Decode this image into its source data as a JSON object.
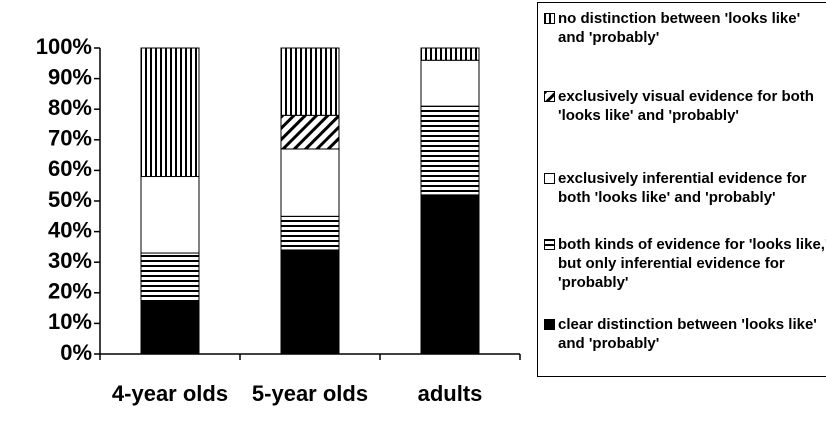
{
  "chart_data": {
    "type": "stacked_bar",
    "categories": [
      "4-year olds",
      "5-year olds",
      "adults"
    ],
    "series": [
      {
        "name": "clear distinction between 'looks like' and 'probably'",
        "color": "#000000",
        "pattern": "solid",
        "values": [
          17,
          34,
          52
        ]
      },
      {
        "name": "both kinds of evidence for 'looks like,' but only inferential evidence for 'probably'",
        "color": "#000000",
        "pattern": "horizontal",
        "values": [
          16,
          11,
          29
        ]
      },
      {
        "name": "exclusively inferential evidence for both 'looks like' and 'probably'",
        "color": "#000000",
        "pattern": "none",
        "values": [
          25,
          22,
          15
        ]
      },
      {
        "name": "exclusively visual evidence for both 'looks like' and 'probably'",
        "color": "#000000",
        "pattern": "diagonal",
        "values": [
          0,
          11,
          0
        ]
      },
      {
        "name": "no distinction between 'looks like' and 'probably'",
        "color": "#000000",
        "pattern": "vertical",
        "values": [
          42,
          22,
          4
        ]
      }
    ],
    "ylim": [
      0,
      100
    ],
    "yticks": [
      {
        "value": 0,
        "label": "0%"
      },
      {
        "value": 10,
        "label": "10%"
      },
      {
        "value": 20,
        "label": "20%"
      },
      {
        "value": 30,
        "label": "30%"
      },
      {
        "value": 40,
        "label": "40%"
      },
      {
        "value": 50,
        "label": "50%"
      },
      {
        "value": 60,
        "label": "60%"
      },
      {
        "value": 70,
        "label": "70%"
      },
      {
        "value": 80,
        "label": "80%"
      },
      {
        "value": 90,
        "label": "90%"
      },
      {
        "value": 100,
        "label": "100%"
      }
    ],
    "legend": "right"
  }
}
